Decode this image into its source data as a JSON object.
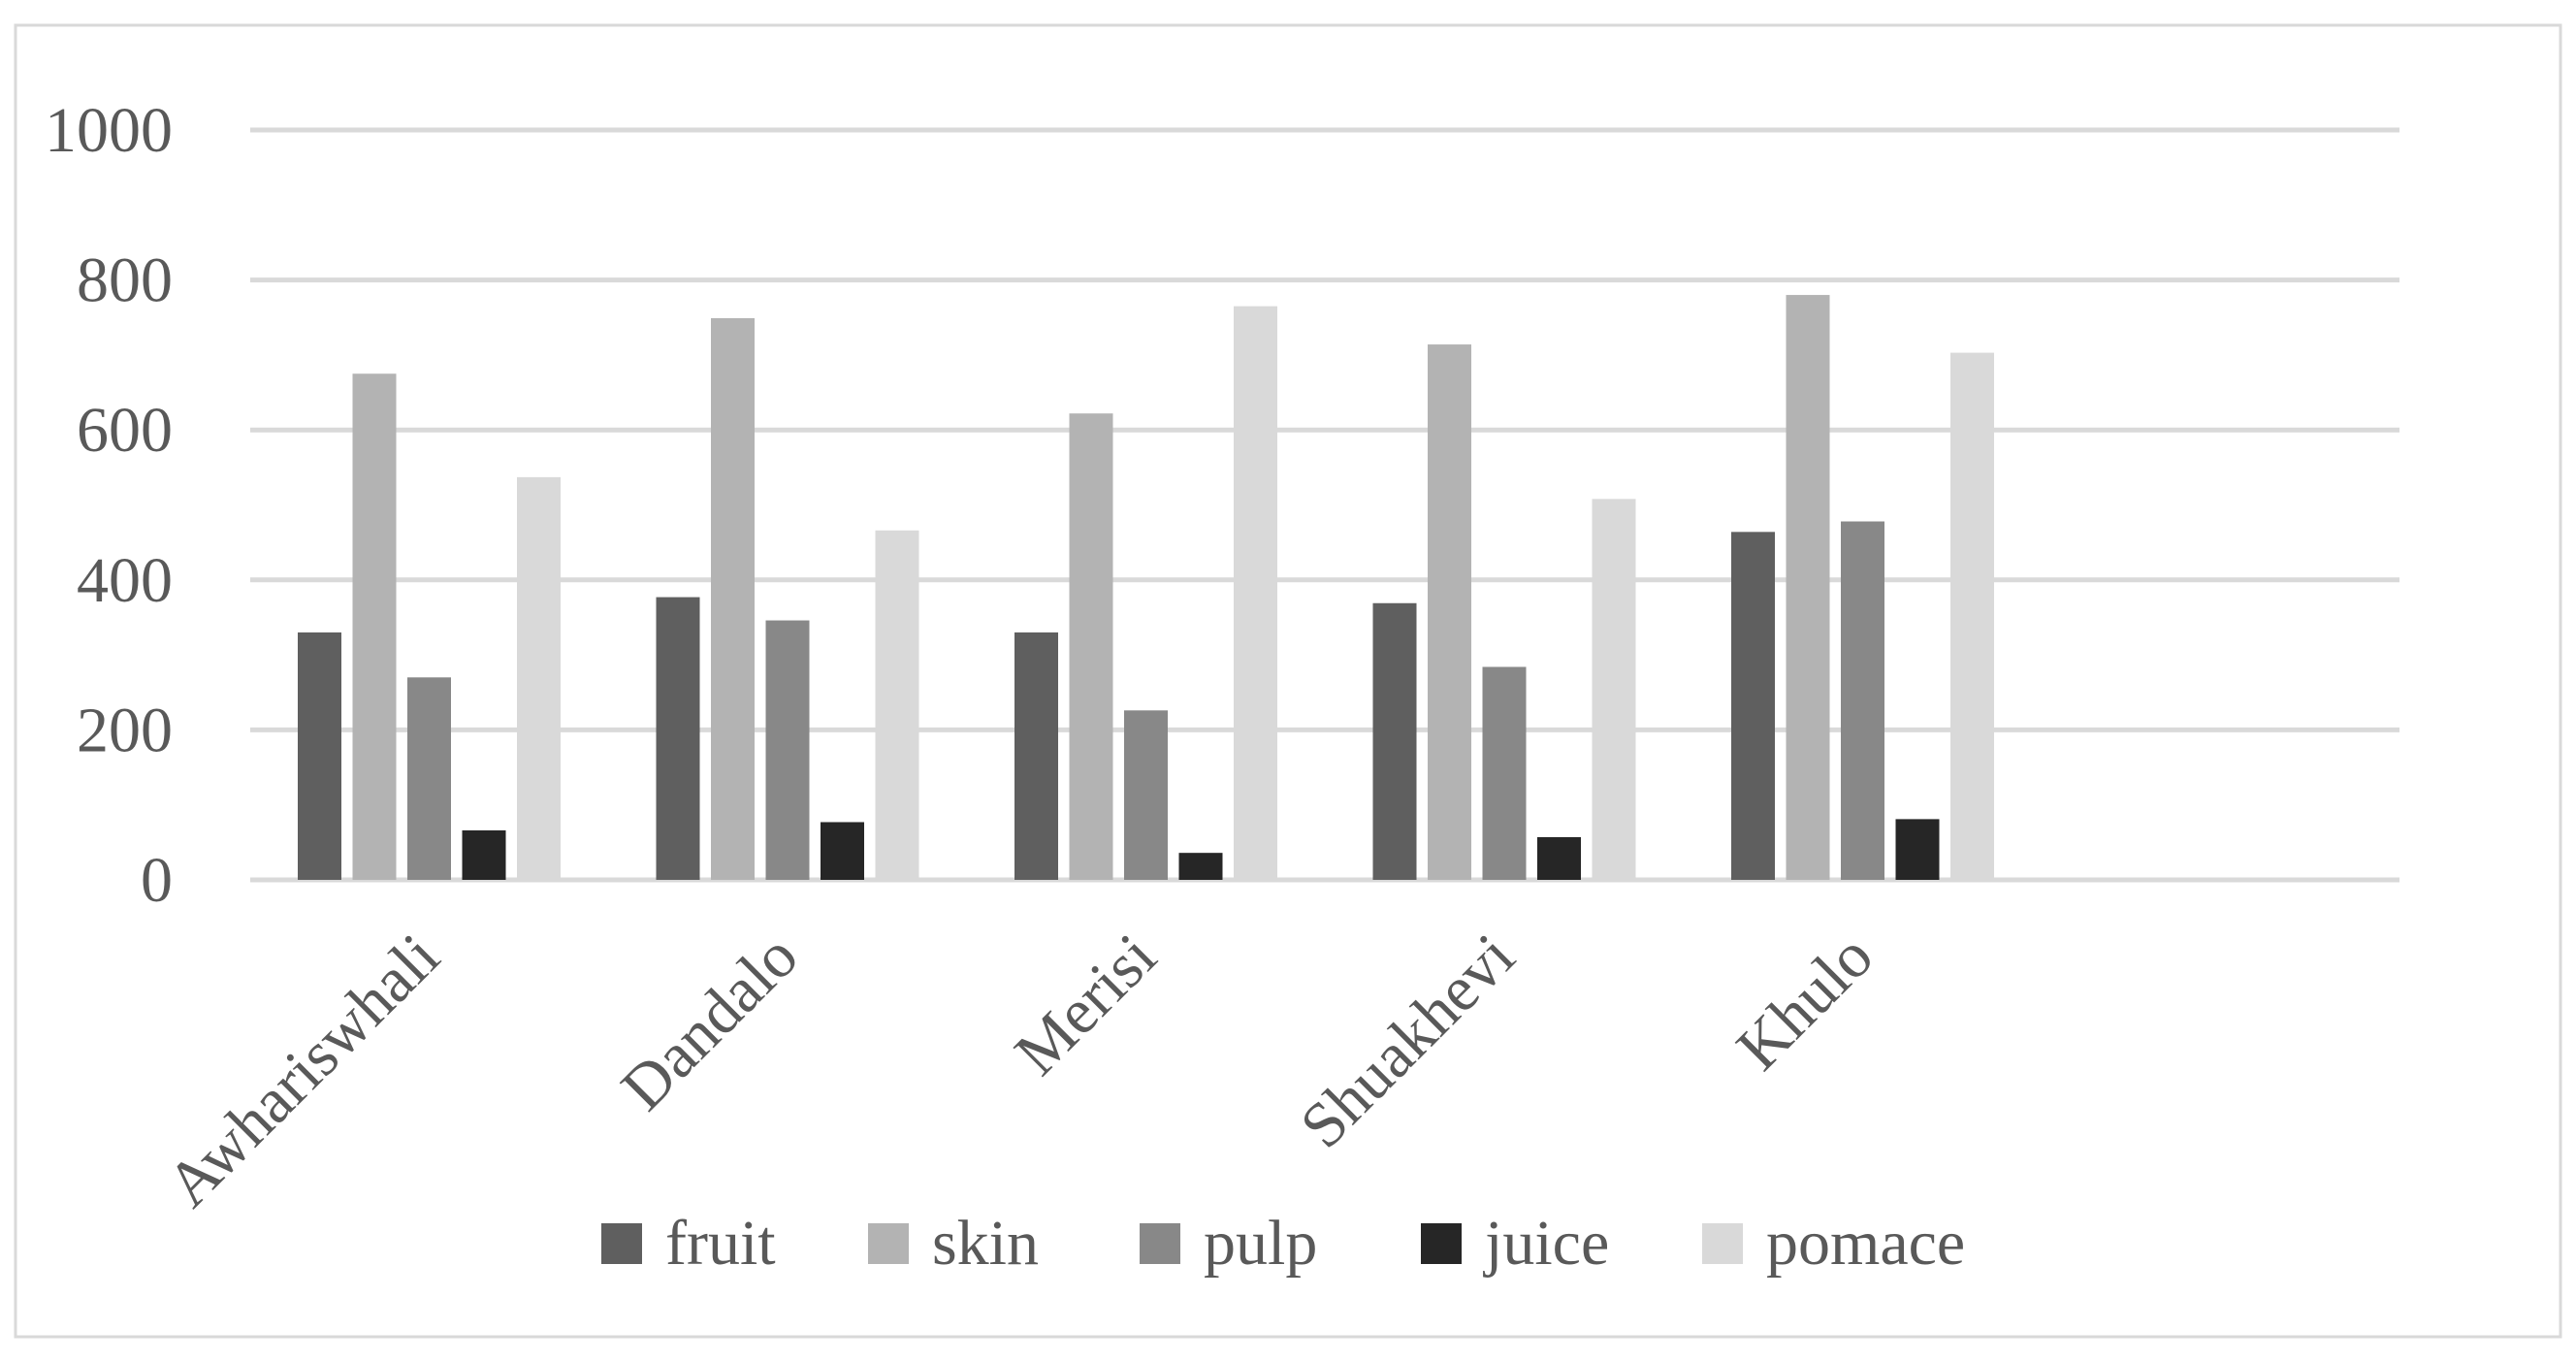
{
  "chart_data": {
    "type": "bar",
    "categories": [
      "Awhariswhali",
      "Dandalo",
      "Merisi",
      "Shuakhevi",
      "Khulo"
    ],
    "series": [
      {
        "name": "fruit",
        "color": "#5f5f5f",
        "values": [
          330,
          377,
          330,
          369,
          464
        ]
      },
      {
        "name": "skin",
        "color": "#b3b3b3",
        "values": [
          675,
          749,
          622,
          714,
          780
        ]
      },
      {
        "name": "pulp",
        "color": "#888888",
        "values": [
          270,
          346,
          226,
          284,
          478
        ]
      },
      {
        "name": "juice",
        "color": "#262626",
        "values": [
          66,
          77,
          36,
          57,
          81
        ]
      },
      {
        "name": "pomace",
        "color": "#d9d9d9",
        "values": [
          537,
          466,
          765,
          508,
          703
        ]
      }
    ],
    "y_ticks": [
      "0",
      "200",
      "400",
      "600",
      "800",
      "1000"
    ],
    "ylim": [
      0,
      1000
    ],
    "grid": true,
    "legend_position": "bottom"
  }
}
